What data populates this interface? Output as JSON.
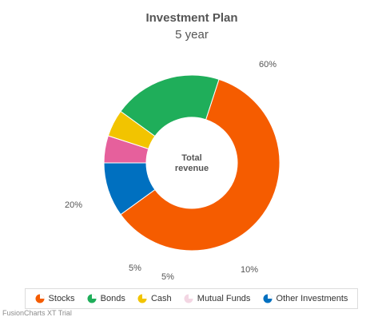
{
  "header": {
    "title": "Investment Plan",
    "subtitle": "5 year"
  },
  "center_label": {
    "line1": "Total",
    "line2": "revenue"
  },
  "chart_data": {
    "type": "pie",
    "variant": "doughnut",
    "title": "Investment Plan",
    "subtitle": "5 year",
    "center_label": "Total revenue",
    "slices": [
      {
        "label": "Stocks",
        "value": 60,
        "display": "60%",
        "color": "#f55c00"
      },
      {
        "label": "Other Investments",
        "value": 10,
        "display": "10%",
        "color": "#0070c0"
      },
      {
        "label": "Mutual Funds",
        "value": 5,
        "display": "5%",
        "color": "#e6609c"
      },
      {
        "label": "Cash",
        "value": 5,
        "display": "5%",
        "color": "#f2c400"
      },
      {
        "label": "Bonds",
        "value": 20,
        "display": "20%",
        "color": "#1fae5a"
      }
    ],
    "legend_order": [
      "Stocks",
      "Bonds",
      "Cash",
      "Mutual Funds",
      "Other Investments"
    ],
    "legend_placement": "bottom"
  },
  "legend": {
    "items": [
      {
        "label": "Stocks",
        "color": "#f55c00",
        "icon": "pie-icon"
      },
      {
        "label": "Bonds",
        "color": "#1fae5a",
        "icon": "pie-icon"
      },
      {
        "label": "Cash",
        "color": "#f2c400",
        "icon": "pie-icon"
      },
      {
        "label": "Mutual Funds",
        "color": "#f3d6e3",
        "icon": "pie-icon"
      },
      {
        "label": "Other Investments",
        "color": "#0070c0",
        "icon": "pie-icon"
      }
    ]
  },
  "watermark": "FusionCharts XT Trial"
}
